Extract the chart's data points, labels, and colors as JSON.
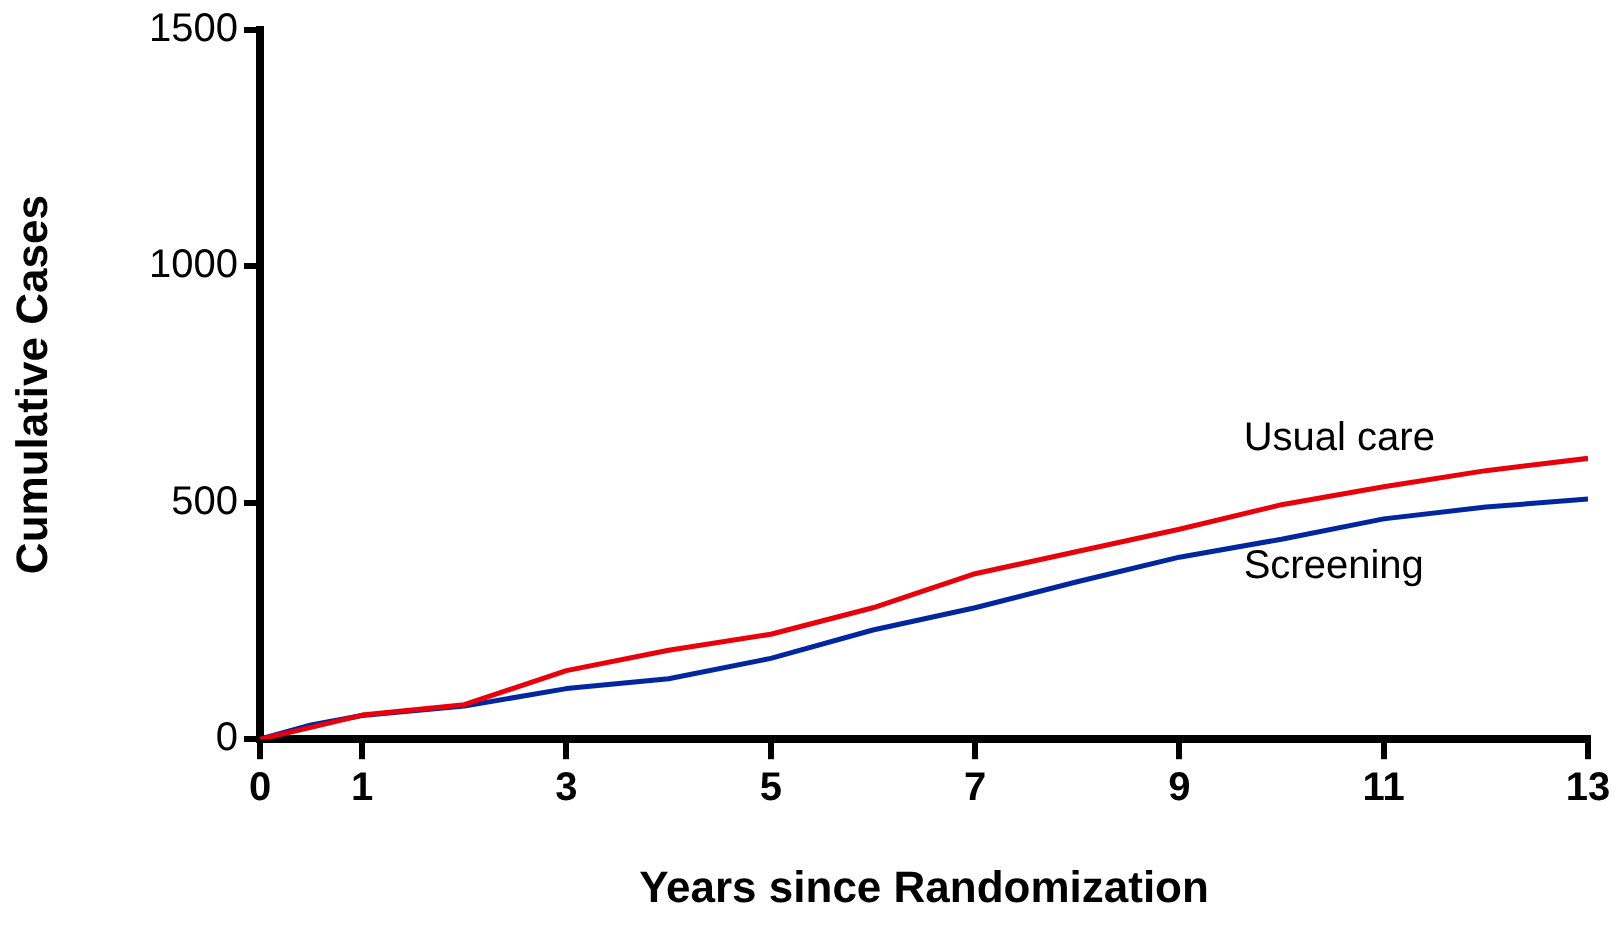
{
  "chart_data": {
    "type": "line",
    "xlabel": "Years since Randomization",
    "ylabel": "Cumulative Cases",
    "xlim": [
      0,
      13
    ],
    "xticks": [
      0,
      1,
      3,
      5,
      7,
      9,
      11,
      13
    ],
    "ylim": [
      0,
      1500
    ],
    "yticks": [
      0,
      500,
      1000,
      1500
    ],
    "grid": false,
    "legend": false,
    "marker": "none",
    "line_style": "solid",
    "x": [
      0,
      0.5,
      1,
      2,
      3,
      4,
      5,
      6,
      7,
      8,
      9,
      10,
      11,
      12,
      13
    ],
    "series": [
      {
        "name": "Usual care",
        "color": "#e8000b",
        "values": [
          0,
          25,
          51,
          73,
          145,
          188,
          222,
          278,
          350,
          397,
          444,
          496,
          534,
          568,
          594
        ]
      },
      {
        "name": "Screening",
        "color": "#0026a0",
        "values": [
          0,
          30,
          50,
          70,
          107,
          128,
          171,
          231,
          278,
          333,
          385,
          423,
          466,
          491,
          508
        ]
      }
    ]
  }
}
